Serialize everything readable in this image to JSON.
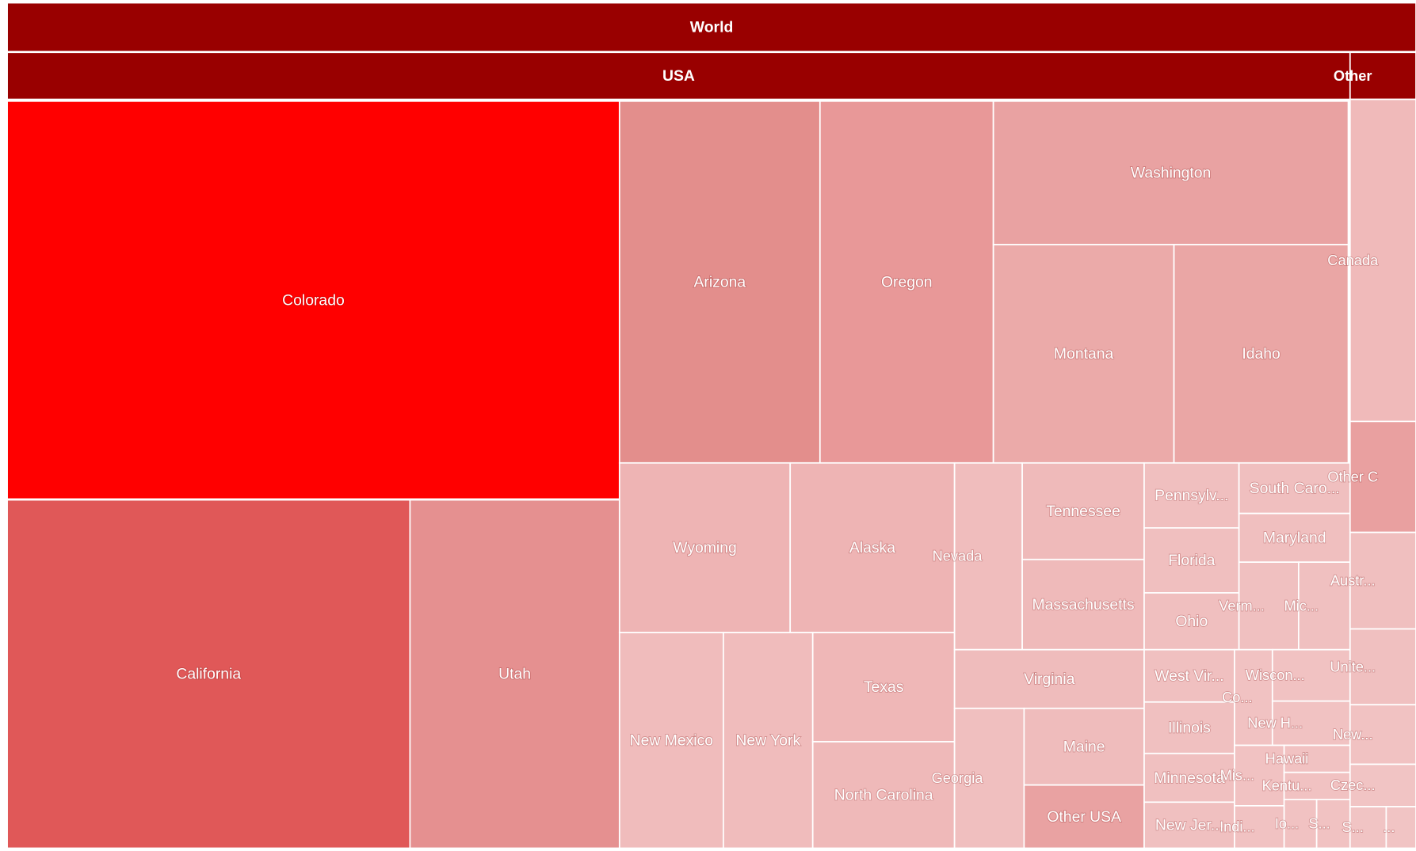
{
  "chart_data": {
    "type": "treemap",
    "nodes": [
      {
        "label": "World",
        "color": "#990000"
      },
      {
        "label": "USA",
        "color": "#990000"
      },
      {
        "label": "Other",
        "color": "#990000"
      },
      {
        "label": "Colorado",
        "color": "#ff0000"
      },
      {
        "label": "California",
        "color": "#e05858"
      },
      {
        "label": "Utah",
        "color": "#e59090"
      },
      {
        "label": "Arizona",
        "color": "#e38e8c"
      },
      {
        "label": "Oregon",
        "color": "#e89898"
      },
      {
        "label": "Washington",
        "color": "#e9a2a2"
      },
      {
        "label": "Montana",
        "color": "#ebaaa9"
      },
      {
        "label": "Idaho",
        "color": "#eaa6a5"
      },
      {
        "label": "Wyoming",
        "color": "#eeb4b4"
      },
      {
        "label": "Alaska",
        "color": "#eeb4b4"
      },
      {
        "label": "New Mexico",
        "color": "#f0bcbc"
      },
      {
        "label": "New York",
        "color": "#f0bcbc"
      },
      {
        "label": "Texas",
        "color": "#efb7b7"
      },
      {
        "label": "North Carolina",
        "color": "#efb9b9"
      },
      {
        "label": "Nevada",
        "color": "#f0bdbd"
      },
      {
        "label": "Tennessee",
        "color": "#efbaba"
      },
      {
        "label": "Massachusetts",
        "color": "#efbaba"
      },
      {
        "label": "Pennsylv...",
        "color": "#f0bfbf"
      },
      {
        "label": "South Caro...",
        "color": "#f0bfbf"
      },
      {
        "label": "Florida",
        "color": "#f0bfbf"
      },
      {
        "label": "Maryland",
        "color": "#f0bfbf"
      },
      {
        "label": "Ohio",
        "color": "#f0bfbf"
      },
      {
        "label": "Verm...",
        "color": "#f0c0c0"
      },
      {
        "label": "Mic...",
        "color": "#f0c0c0"
      },
      {
        "label": "Virginia",
        "color": "#efbcbc"
      },
      {
        "label": "Georgia",
        "color": "#f0bfbf"
      },
      {
        "label": "Maine",
        "color": "#efbcbc"
      },
      {
        "label": "Other USA",
        "color": "#e9a2a2"
      },
      {
        "label": "West Vir...",
        "color": "#f0c0c0"
      },
      {
        "label": "Illinois",
        "color": "#f0c0c0"
      },
      {
        "label": "Minnesota",
        "color": "#f0c0c0"
      },
      {
        "label": "New Jer...",
        "color": "#f0c0c0"
      },
      {
        "label": "Co...",
        "color": "#f1c2c2"
      },
      {
        "label": "Wiscon...",
        "color": "#f1c2c2"
      },
      {
        "label": "New H...",
        "color": "#f1c2c2"
      },
      {
        "label": "Mis...",
        "color": "#f1c2c2"
      },
      {
        "label": "Hawaii",
        "color": "#f1c2c2"
      },
      {
        "label": "Kentu...",
        "color": "#f1c2c2"
      },
      {
        "label": "Indi...",
        "color": "#f1c2c2"
      },
      {
        "label": "Io...",
        "color": "#f1c2c2"
      },
      {
        "label": "S...",
        "color": "#f1c2c2"
      },
      {
        "label": "Canada",
        "color": "#f0baba"
      },
      {
        "label": "Other C",
        "color": "#e9a0a0"
      },
      {
        "label": "Austr...",
        "color": "#f0bfbf"
      },
      {
        "label": "Unite...",
        "color": "#f0c0c0"
      },
      {
        "label": "New...",
        "color": "#f1c2c2"
      },
      {
        "label": "Czec...",
        "color": "#f1c4c4"
      },
      {
        "label": "S...",
        "color": "#f1c4c4"
      },
      {
        "label": "...",
        "color": "#f1c4c4"
      }
    ]
  }
}
